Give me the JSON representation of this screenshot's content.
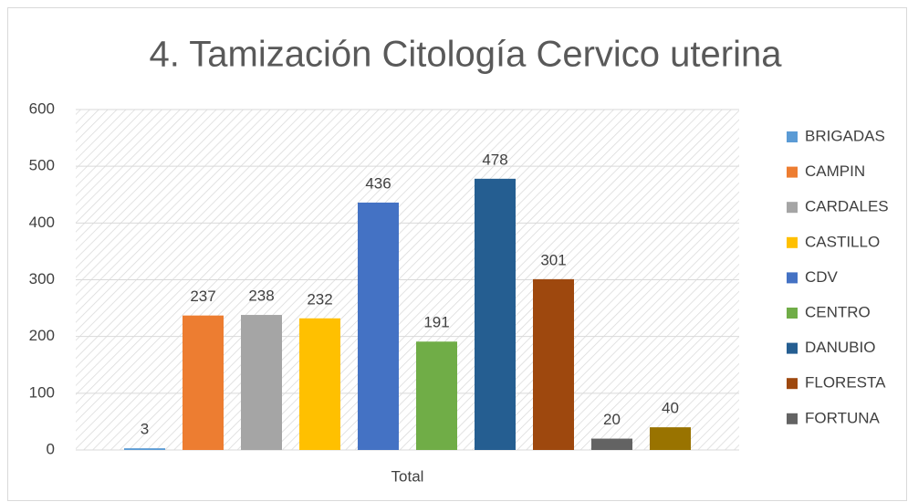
{
  "chart_data": {
    "type": "bar",
    "title": "4. Tamización Citología Cervico uterina",
    "categories": [
      "Total"
    ],
    "series": [
      {
        "name": "BRIGADAS",
        "color": "#5b9bd5",
        "values": [
          3
        ]
      },
      {
        "name": "CAMPIN",
        "color": "#ed7d31",
        "values": [
          237
        ]
      },
      {
        "name": "CARDALES",
        "color": "#a5a5a5",
        "values": [
          238
        ]
      },
      {
        "name": "CASTILLO",
        "color": "#ffc000",
        "values": [
          232
        ]
      },
      {
        "name": "CDV",
        "color": "#4472c4",
        "values": [
          436
        ]
      },
      {
        "name": "CENTRO",
        "color": "#70ad47",
        "values": [
          191
        ]
      },
      {
        "name": "DANUBIO",
        "color": "#255e91",
        "values": [
          478
        ]
      },
      {
        "name": "FLORESTA",
        "color": "#9e480e",
        "values": [
          301
        ]
      },
      {
        "name": "FORTUNA",
        "color": "#636363",
        "values": [
          20
        ]
      },
      {
        "color": "#997300",
        "values": [
          40
        ]
      }
    ],
    "ylim": [
      0,
      600
    ],
    "yticks": [
      0,
      100,
      200,
      300,
      400,
      500,
      600
    ],
    "grid": true,
    "legend": "right"
  }
}
